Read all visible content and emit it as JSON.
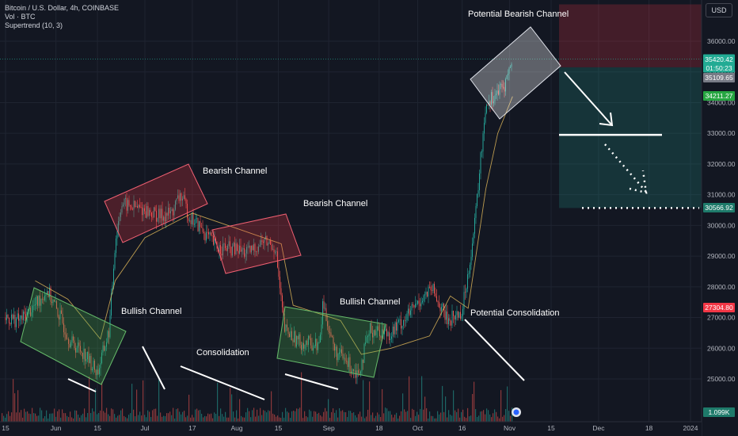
{
  "header": {
    "title": "Bitcoin / U.S. Dollar, 4h, COINBASE",
    "indicators": [
      "Vol · BTC",
      "Supertrend (10, 3)"
    ],
    "currency_button": "USD"
  },
  "chart_data": {
    "type": "candlestick",
    "symbol": "Bitcoin / U.S. Dollar",
    "interval": "4h",
    "exchange": "COINBASE",
    "currency": "USD",
    "y_axis": {
      "ticks": [
        36000,
        35000,
        34000,
        33000,
        32000,
        31000,
        30000,
        29000,
        28000,
        27000,
        26000,
        25000
      ],
      "tick_labels": [
        "36000.00",
        "35000.00",
        "34000.00",
        "33000.00",
        "32000.00",
        "31000.00",
        "30000.00",
        "29000.00",
        "28000.00",
        "27000.00",
        "26000.00",
        "25000.00"
      ],
      "ylim": [
        24000,
        37200
      ]
    },
    "x_axis": {
      "tick_labels": [
        "15",
        "Jun",
        "15",
        "Jul",
        "17",
        "Aug",
        "15",
        "Sep",
        "18",
        "Oct",
        "16",
        "Nov",
        "15",
        "Dec",
        "18",
        "2024"
      ],
      "tick_dates": [
        "2023-05-15",
        "2023-06-01",
        "2023-06-15",
        "2023-07-01",
        "2023-07-17",
        "2023-08-01",
        "2023-08-15",
        "2023-09-01",
        "2023-09-18",
        "2023-10-01",
        "2023-10-16",
        "2023-11-01",
        "2023-11-15",
        "2023-12-01",
        "2023-12-18",
        "2024-01-01"
      ]
    },
    "price_labels": [
      {
        "value": "35420.42",
        "sub": "01:50:23",
        "color": "#22ab94"
      },
      {
        "value": "35109.65",
        "color": "#787b86"
      },
      {
        "value": "34211.27",
        "color": "#26a641"
      },
      {
        "value": "30566.92",
        "color": "#1e7a6a"
      },
      {
        "value": "27304.80",
        "color": "#f23645"
      },
      {
        "value": "1.099K",
        "color": "#1e7a6a"
      }
    ],
    "price_path": [
      {
        "x": "2023-05-15",
        "y": 27000
      },
      {
        "x": "2023-05-20",
        "y": 26900
      },
      {
        "x": "2023-05-25",
        "y": 27400
      },
      {
        "x": "2023-05-29",
        "y": 27900
      },
      {
        "x": "2023-06-02",
        "y": 27100
      },
      {
        "x": "2023-06-06",
        "y": 26200
      },
      {
        "x": "2023-06-10",
        "y": 25900
      },
      {
        "x": "2023-06-15",
        "y": 25200
      },
      {
        "x": "2023-06-19",
        "y": 26600
      },
      {
        "x": "2023-06-21",
        "y": 29500
      },
      {
        "x": "2023-06-23",
        "y": 30700
      },
      {
        "x": "2023-07-01",
        "y": 30500
      },
      {
        "x": "2023-07-06",
        "y": 30300
      },
      {
        "x": "2023-07-10",
        "y": 30400
      },
      {
        "x": "2023-07-13",
        "y": 31000
      },
      {
        "x": "2023-07-16",
        "y": 30300
      },
      {
        "x": "2023-07-20",
        "y": 29900
      },
      {
        "x": "2023-07-25",
        "y": 29300
      },
      {
        "x": "2023-08-01",
        "y": 29200
      },
      {
        "x": "2023-08-05",
        "y": 29100
      },
      {
        "x": "2023-08-10",
        "y": 29500
      },
      {
        "x": "2023-08-14",
        "y": 29300
      },
      {
        "x": "2023-08-17",
        "y": 26600
      },
      {
        "x": "2023-08-22",
        "y": 26200
      },
      {
        "x": "2023-08-29",
        "y": 26100
      },
      {
        "x": "2023-08-30",
        "y": 27500
      },
      {
        "x": "2023-09-03",
        "y": 25900
      },
      {
        "x": "2023-09-11",
        "y": 25200
      },
      {
        "x": "2023-09-15",
        "y": 26600
      },
      {
        "x": "2023-09-22",
        "y": 26500
      },
      {
        "x": "2023-09-28",
        "y": 27100
      },
      {
        "x": "2023-10-02",
        "y": 27600
      },
      {
        "x": "2023-10-06",
        "y": 27900
      },
      {
        "x": "2023-10-11",
        "y": 26900
      },
      {
        "x": "2023-10-16",
        "y": 27200
      },
      {
        "x": "2023-10-18",
        "y": 28500
      },
      {
        "x": "2023-10-20",
        "y": 29800
      },
      {
        "x": "2023-10-24",
        "y": 34000
      },
      {
        "x": "2023-10-30",
        "y": 34500
      },
      {
        "x": "2023-11-02",
        "y": 35400
      }
    ],
    "supertrend": [
      {
        "x": "2023-05-25",
        "y": 28200
      },
      {
        "x": "2023-06-05",
        "y": 27600
      },
      {
        "x": "2023-06-16",
        "y": 26300
      },
      {
        "x": "2023-06-21",
        "y": 28200
      },
      {
        "x": "2023-07-01",
        "y": 29600
      },
      {
        "x": "2023-07-17",
        "y": 30400
      },
      {
        "x": "2023-08-01",
        "y": 29900
      },
      {
        "x": "2023-08-16",
        "y": 29400
      },
      {
        "x": "2023-08-20",
        "y": 27400
      },
      {
        "x": "2023-09-05",
        "y": 26900
      },
      {
        "x": "2023-09-12",
        "y": 25800
      },
      {
        "x": "2023-09-22",
        "y": 26000
      },
      {
        "x": "2023-10-05",
        "y": 26400
      },
      {
        "x": "2023-10-12",
        "y": 27700
      },
      {
        "x": "2023-10-18",
        "y": 27300
      },
      {
        "x": "2023-10-24",
        "y": 31200
      },
      {
        "x": "2023-10-28",
        "y": 33000
      },
      {
        "x": "2023-11-02",
        "y": 34200
      }
    ],
    "annotations": [
      {
        "text": "Bullish Channel",
        "type": "bullish"
      },
      {
        "text": "Consolidation",
        "type": "note"
      },
      {
        "text": "Bearish Channel",
        "type": "bearish"
      },
      {
        "text": "Bearish Channel",
        "type": "bearish"
      },
      {
        "text": "Bullish Channel",
        "type": "bullish"
      },
      {
        "text": "Potential Consolidation",
        "type": "note"
      },
      {
        "text": "Potential Bearish Channel",
        "type": "bearish"
      }
    ],
    "projection": {
      "stop_zone": [
        35150,
        37200
      ],
      "target_zone": [
        30566.92,
        35150
      ],
      "levels": [
        32950,
        30566.92
      ]
    },
    "grid": true,
    "colors": {
      "up": "#26a69a",
      "down": "#ef5350",
      "background": "#131722"
    }
  }
}
